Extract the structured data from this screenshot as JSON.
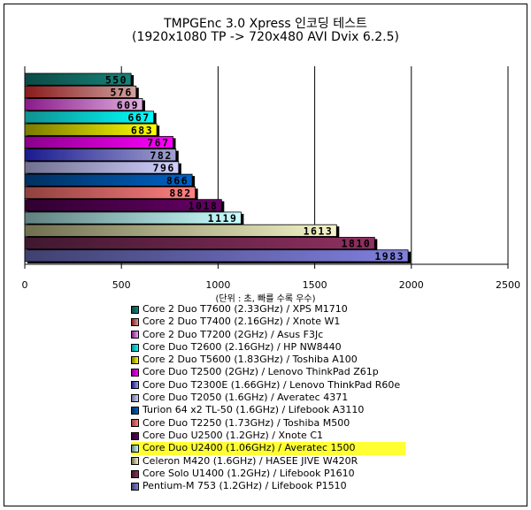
{
  "chart_data": {
    "type": "bar",
    "orientation": "horizontal",
    "title": "TMPGEnc 3.0 Xpress 인코딩 테스트",
    "subtitle": "(1920x1080 TP -> 720x480 AVI Dvix 6.2.5)",
    "xlabel": "(단위 : 초, 빠를 수록 우수)",
    "xlim": [
      0,
      2500
    ],
    "xticks": [
      "0",
      "500",
      "1000",
      "1500",
      "2000",
      "2500"
    ],
    "grid": true,
    "legend_position": "bottom",
    "highlighted": 11,
    "series": [
      {
        "name": "Core 2 Duo T7600 (2.33GHz) / XPS M1710",
        "value": 550,
        "c1": "#0b4a44",
        "c2": "#16837a"
      },
      {
        "name": "Core 2 Duo T7400 (2.16GHz) / Xnote W1",
        "value": 576,
        "c1": "#8a1a1a",
        "c2": "#d0a0a0"
      },
      {
        "name": "Core 2 Duo T7200 (2GHz) / Asus F3Jc",
        "value": 609,
        "c1": "#8a1a8a",
        "c2": "#e0b0e0"
      },
      {
        "name": "Core Duo T2600 (2.16GHz) / HP NW8440",
        "value": 667,
        "c1": "#109090",
        "c2": "#00ffff"
      },
      {
        "name": "Core 2 Duo T5600 (1.83GHz) / Toshiba A100",
        "value": 683,
        "c1": "#7a7a00",
        "c2": "#ffff00"
      },
      {
        "name": "Core Duo T2500 (2GHz) / Lenovo ThinkPad Z61p",
        "value": 767,
        "c1": "#8a008a",
        "c2": "#ff00ff"
      },
      {
        "name": "Core Duo T2300E (1.66GHz) / Lenovo ThinkPad R60e",
        "value": 782,
        "c1": "#1a1a90",
        "c2": "#a0a0d0"
      },
      {
        "name": "Core Duo T2050 (1.6GHz) / Averatec 4371",
        "value": 796,
        "c1": "#707090",
        "c2": "#d0d0ff"
      },
      {
        "name": "Turion 64 x2 TL-50 (1.6GHz) / Lifebook A3110",
        "value": 866,
        "c1": "#003060",
        "c2": "#0062c4"
      },
      {
        "name": "Core Duo T2250 (1.73GHz) / Toshiba M500",
        "value": 882,
        "c1": "#904040",
        "c2": "#ff8080"
      },
      {
        "name": "Core Duo U2500 (1.2GHz) / Xnote C1",
        "value": 1018,
        "c1": "#300030",
        "c2": "#660066"
      },
      {
        "name": "Core Duo U2400 (1.06GHz) / Averatec 1500",
        "value": 1119,
        "c1": "#608080",
        "c2": "#c8ffff"
      },
      {
        "name": "Celeron M420 (1.6GHz) / HASEE JIVE W420R",
        "value": 1613,
        "c1": "#707050",
        "c2": "#f4f4c8"
      },
      {
        "name": "Core Solo U1400 (1.2GHz) / Lifebook P1610",
        "value": 1810,
        "c1": "#401830",
        "c2": "#903060"
      },
      {
        "name": "Pentium-M 753 (1.2GHz) / Lifebook P1510",
        "value": 1983,
        "c1": "#404070",
        "c2": "#8080e0"
      }
    ]
  }
}
